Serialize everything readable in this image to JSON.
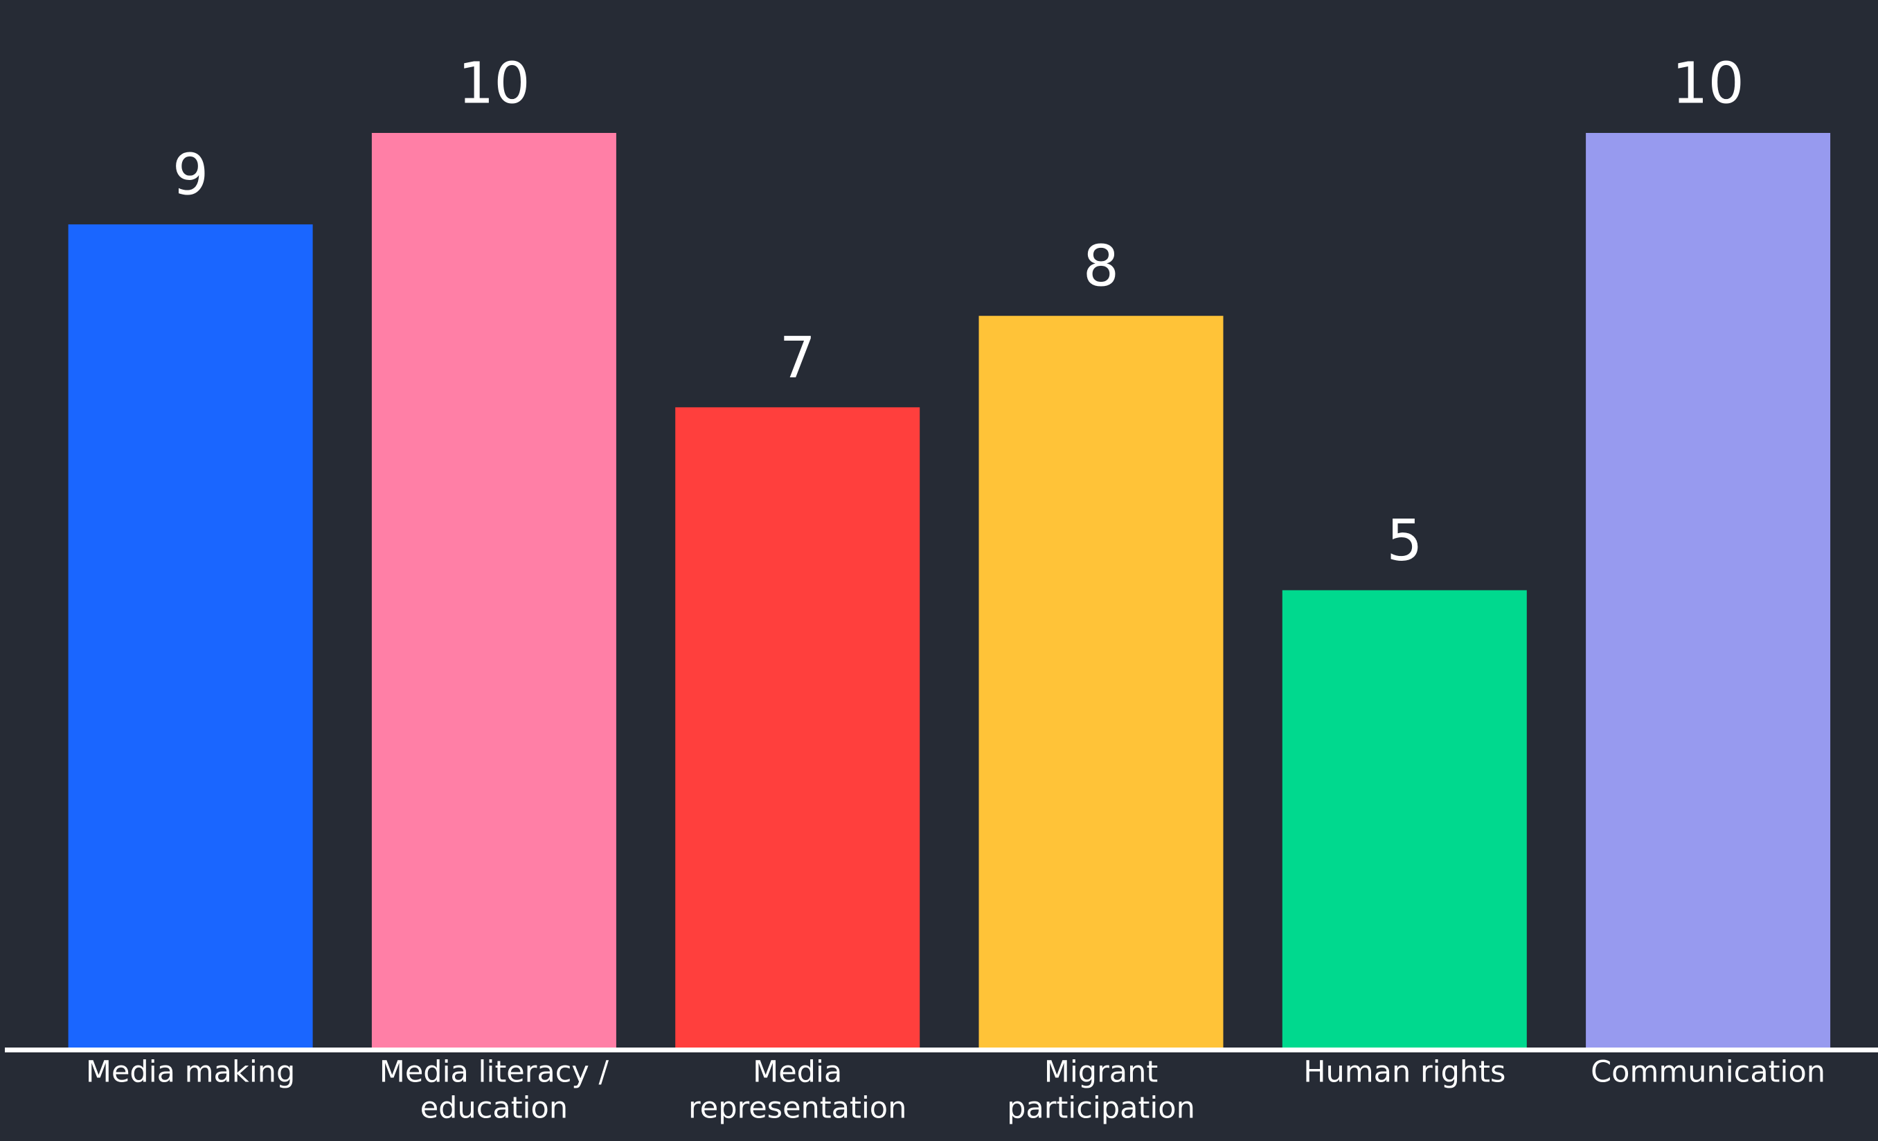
{
  "chart_data": {
    "type": "bar",
    "categories": [
      [
        "Media making"
      ],
      [
        "Media literacy /",
        "education"
      ],
      [
        "Media",
        "representation"
      ],
      [
        "Migrant",
        "participation"
      ],
      [
        "Human rights"
      ],
      [
        "Communication"
      ]
    ],
    "values": [
      9,
      10,
      7,
      8,
      5,
      10
    ],
    "colors": [
      "#1a66ff",
      "#ff7fa6",
      "#ff3f3d",
      "#ffc338",
      "#00d98e",
      "#979aef"
    ],
    "ylim": [
      0,
      10
    ],
    "background": "#262b35",
    "axis_color": "#ffffff",
    "text_color": "#ffffff"
  }
}
